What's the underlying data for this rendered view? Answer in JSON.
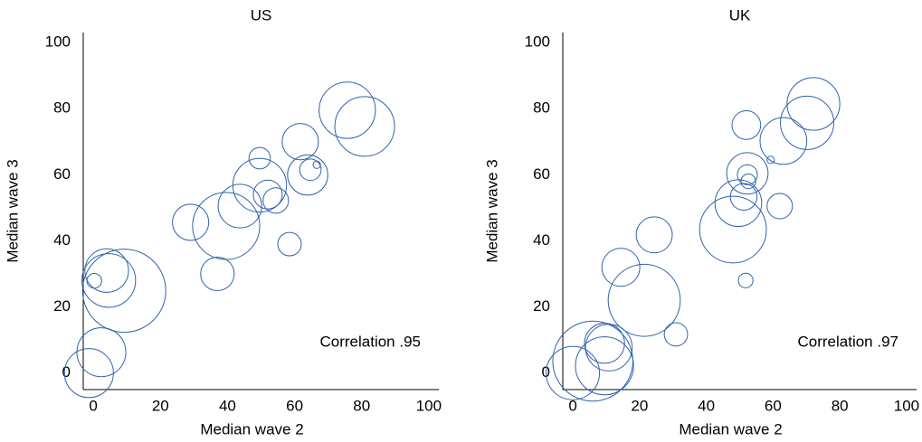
{
  "chart_data": [
    {
      "type": "scatter",
      "title": "US",
      "x_label": "Median wave 2",
      "y_label": "Median wave 3",
      "annotation": "Correlation .95",
      "color": "#2f63ad",
      "xlim": [
        -3,
        103
      ],
      "ylim": [
        -5,
        103
      ],
      "xticks": [
        0,
        20,
        40,
        60,
        80,
        100
      ],
      "yticks": [
        0,
        20,
        40,
        60,
        80,
        100
      ],
      "x": [
        -1.3,
        2.4,
        0.3,
        9.2,
        4.6,
        4,
        29,
        37,
        39.6,
        43.7,
        49.6,
        49.6,
        52,
        54.4,
        58.5,
        61.7,
        63.9,
        64.7,
        66.6,
        75.7,
        80.9
      ],
      "values": [
        0,
        6.3,
        27.9,
        24.9,
        28,
        31,
        45.6,
        30,
        44.5,
        50.5,
        56.8,
        65,
        54,
        52.2,
        39,
        70,
        59.9,
        61.5,
        63,
        79.5,
        74.6
      ],
      "sizes": [
        7.3,
        7.3,
        2.2,
        12.4,
        8,
        6.5,
        5.4,
        5,
        10,
        6.5,
        8,
        3.2,
        4.3,
        3.8,
        3.5,
        5.4,
        6,
        3.2,
        1.1,
        8.4,
        8.9
      ]
    },
    {
      "type": "scatter",
      "title": "UK",
      "x_label": "Median wave 2",
      "y_label": "Median wave 3",
      "annotation": "Correlation .97",
      "color": "#2f63ad",
      "xlim": [
        -3,
        103
      ],
      "ylim": [
        -5,
        103
      ],
      "xticks": [
        0,
        20,
        40,
        60,
        80,
        100
      ],
      "yticks": [
        0,
        20,
        40,
        60,
        80,
        100
      ],
      "x": [
        0,
        6,
        9.5,
        10.8,
        9.5,
        14.4,
        21.4,
        24.4,
        30.9,
        48,
        49.6,
        51.2,
        52.3,
        52.3,
        52.6,
        52,
        51.8,
        59.3,
        62,
        63.1,
        70.2,
        72.1
      ],
      "values": [
        0,
        3.6,
        2.2,
        7.7,
        9,
        32,
        22,
        41.8,
        11.7,
        43.4,
        51.4,
        53.3,
        60.4,
        60,
        58,
        75,
        28,
        64.5,
        50.5,
        70.2,
        75.7,
        81.4
      ],
      "sizes": [
        8,
        12,
        8.7,
        7,
        6,
        5.7,
        10.8,
        5.4,
        3.5,
        10,
        7,
        4,
        6.2,
        3,
        2.2,
        4.3,
        2.2,
        1.1,
        3.8,
        7,
        8,
        7.9
      ]
    }
  ]
}
